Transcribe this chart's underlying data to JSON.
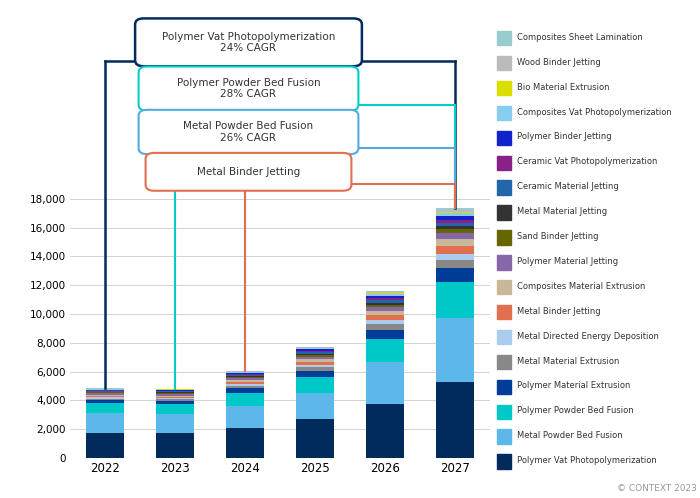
{
  "years": [
    "2022",
    "2023",
    "2024",
    "2025",
    "2026",
    "2027"
  ],
  "categories": [
    "Polymer Vat Photopolymerization",
    "Metal Powder Bed Fusion",
    "Polymer Powder Bed Fusion",
    "Polymer Material Extrusion",
    "Metal Material Extrusion",
    "Metal Directed Energy Deposition",
    "Metal Binder Jetting",
    "Composites Material Extrusion",
    "Polymer Material Jetting",
    "Sand Binder Jetting",
    "Metal Material Jetting",
    "Ceramic Material Jetting",
    "Ceramic Vat Photopolymerization",
    "Polymer Binder Jetting",
    "Composites Vat Photopolymerization",
    "Bio Material Extrusion",
    "Wood Binder Jetting",
    "Composites Sheet Lamination"
  ],
  "colors": [
    "#002B5C",
    "#5BB8E8",
    "#00C8C8",
    "#003D99",
    "#888888",
    "#AACCEE",
    "#E07050",
    "#C8B898",
    "#8866AA",
    "#666600",
    "#333333",
    "#2266AA",
    "#882288",
    "#1122CC",
    "#88CCEE",
    "#DDDD00",
    "#BBBBBB",
    "#99CCCC"
  ],
  "values": {
    "Polymer Vat Photopolymerization": [
      1750,
      1750,
      2100,
      2750,
      3750,
      5250
    ],
    "Metal Powder Bed Fusion": [
      1350,
      1300,
      1500,
      1800,
      2900,
      4500
    ],
    "Polymer Powder Bed Fusion": [
      700,
      700,
      950,
      1100,
      1600,
      2500
    ],
    "Polymer Material Extrusion": [
      200,
      200,
      300,
      400,
      650,
      950
    ],
    "Metal Material Extrusion": [
      120,
      120,
      180,
      240,
      380,
      560
    ],
    "Metal Directed Energy Deposition": [
      100,
      100,
      140,
      190,
      290,
      430
    ],
    "Metal Binder Jetting": [
      75,
      75,
      110,
      190,
      330,
      560
    ],
    "Composites Material Extrusion": [
      95,
      95,
      130,
      185,
      280,
      420
    ],
    "Polymer Material Jetting": [
      110,
      110,
      140,
      185,
      280,
      420
    ],
    "Sand Binder Jetting": [
      75,
      75,
      95,
      125,
      190,
      285
    ],
    "Metal Material Jetting": [
      45,
      45,
      65,
      95,
      145,
      210
    ],
    "Ceramic Material Jetting": [
      55,
      55,
      75,
      100,
      155,
      230
    ],
    "Ceramic Vat Photopolymerization": [
      45,
      45,
      65,
      95,
      155,
      240
    ],
    "Polymer Binder Jetting": [
      38,
      38,
      55,
      85,
      140,
      235
    ],
    "Composites Vat Photopolymerization": [
      38,
      38,
      55,
      75,
      125,
      190
    ],
    "Bio Material Extrusion": [
      18,
      18,
      28,
      45,
      75,
      125
    ],
    "Wood Binder Jetting": [
      18,
      18,
      28,
      38,
      65,
      110
    ],
    "Composites Sheet Lamination": [
      18,
      18,
      28,
      38,
      65,
      105
    ]
  },
  "ylim": [
    0,
    19000
  ],
  "yticks": [
    0,
    2000,
    4000,
    6000,
    8000,
    10000,
    12000,
    14000,
    16000,
    18000
  ],
  "copyright": "© CONTEXT 2023",
  "background_color": "#ffffff"
}
